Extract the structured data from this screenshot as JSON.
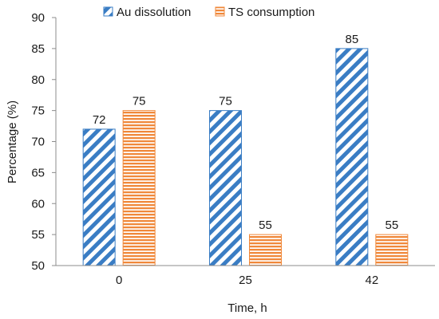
{
  "chart_data": {
    "type": "bar",
    "xlabel": "Time, h",
    "ylabel": "Percentage (%)",
    "categories": [
      "0",
      "25",
      "42"
    ],
    "ylim": [
      50,
      90
    ],
    "yticks": [
      50,
      55,
      60,
      65,
      70,
      75,
      80,
      85,
      90
    ],
    "grid": false,
    "legend_position": "top",
    "series": [
      {
        "name": "Au dissolution",
        "values": [
          72,
          75,
          85
        ],
        "color": "#3a7dc4",
        "pattern": "diagonal-stripes"
      },
      {
        "name": "TS consumption",
        "values": [
          75,
          55,
          55
        ],
        "color": "#f0883a",
        "pattern": "horizontal-stripes"
      }
    ]
  }
}
